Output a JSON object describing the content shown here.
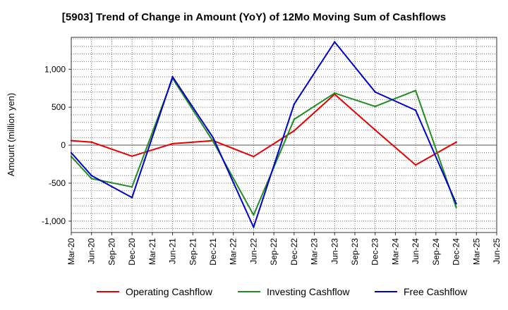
{
  "chart_data": {
    "type": "line",
    "title": "[5903]  Trend of Change in Amount (YoY) of 12Mo Moving Sum of Cashflows",
    "xlabel": "",
    "ylabel": "Amount (million yen)",
    "ylim": [
      -1150,
      1420
    ],
    "y_ticks": [
      -1000,
      -500,
      0,
      500,
      1000
    ],
    "y_tick_labels": [
      "-1,000",
      "-500",
      "0",
      "500",
      "1,000"
    ],
    "categories": [
      "Mar-20",
      "Jun-20",
      "Sep-20",
      "Dec-20",
      "Mar-21",
      "Jun-21",
      "Sep-21",
      "Dec-21",
      "Mar-22",
      "Jun-22",
      "Sep-22",
      "Dec-22",
      "Mar-23",
      "Jun-23",
      "Sep-23",
      "Dec-23",
      "Mar-24",
      "Jun-24",
      "Sep-24",
      "Dec-24",
      "Mar-25",
      "Jun-25"
    ],
    "grid": true,
    "legend_position": "bottom",
    "series": [
      {
        "name": "Operating Cashflow",
        "color": "#e60000",
        "values": [
          60,
          40,
          null,
          -145,
          null,
          20,
          null,
          60,
          null,
          -150,
          null,
          190,
          null,
          670,
          null,
          200,
          null,
          -260,
          null,
          40,
          null,
          null
        ]
      },
      {
        "name": "Investing Cashflow",
        "color": "#228b22",
        "values": [
          -150,
          -440,
          null,
          -550,
          null,
          880,
          null,
          50,
          null,
          -920,
          null,
          340,
          null,
          685,
          null,
          510,
          null,
          720,
          null,
          -820,
          null,
          null
        ]
      },
      {
        "name": "Free Cashflow",
        "color": "#0000cd",
        "values": [
          -100,
          -400,
          null,
          -690,
          null,
          900,
          null,
          100,
          null,
          -1080,
          null,
          540,
          null,
          1360,
          null,
          700,
          null,
          460,
          null,
          -770,
          null,
          null
        ]
      }
    ]
  }
}
